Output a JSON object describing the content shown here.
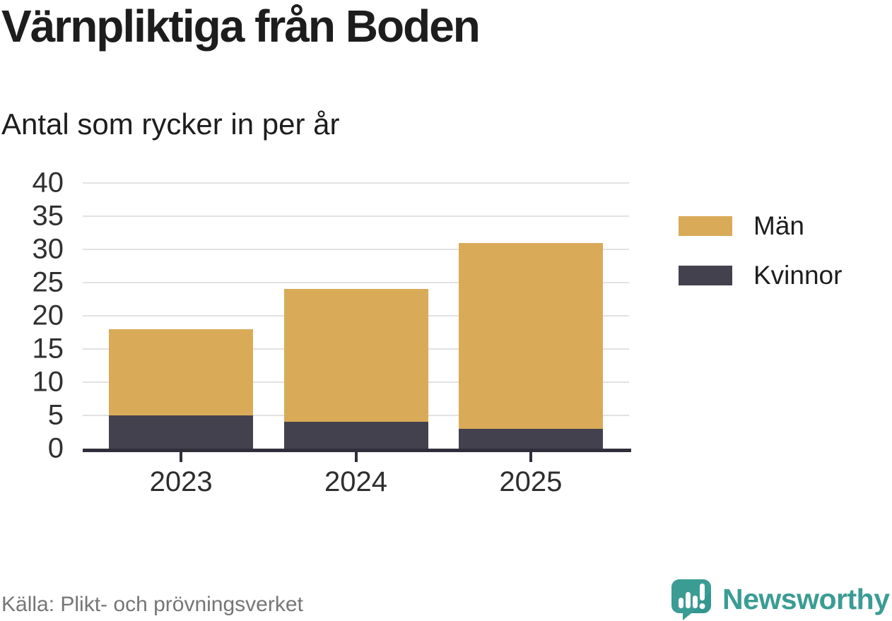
{
  "header": {
    "title": "Värnpliktiga från Boden",
    "subtitle": "Antal som rycker in per år"
  },
  "chart_data": {
    "type": "bar",
    "stacked": true,
    "title": "Värnpliktiga från Boden",
    "subtitle": "Antal som rycker in per år",
    "categories": [
      "2023",
      "2024",
      "2025"
    ],
    "series": [
      {
        "name": "Män",
        "values": [
          13,
          20,
          28
        ],
        "color": "#d9ab58"
      },
      {
        "name": "Kvinnor",
        "values": [
          5,
          4,
          3
        ],
        "color": "#44414e"
      }
    ],
    "stack_order_bottom_to_top": [
      "Kvinnor",
      "Män"
    ],
    "totals": [
      18,
      24,
      31
    ],
    "ylim": [
      0,
      40
    ],
    "yticks": [
      0,
      5,
      10,
      15,
      20,
      25,
      30,
      35,
      40
    ],
    "xlabel": "",
    "ylabel": "",
    "grid": true,
    "legend_position": "right"
  },
  "colors": {
    "men": "#d9ab58",
    "women": "#44414e",
    "axis": "#312e3c",
    "gridline": "#e2e2e2",
    "tick_text": "#303030",
    "title_text": "#1d1d1d",
    "source_text": "#767676",
    "brand_teal": "#3b9c94",
    "brand_teal_dark": "#2f948b"
  },
  "footer": {
    "source": "Källa: Plikt- och prövningsverket",
    "brand": "Newsworthy",
    "logo_icon": "newsworthy-chart-bubble-icon"
  }
}
